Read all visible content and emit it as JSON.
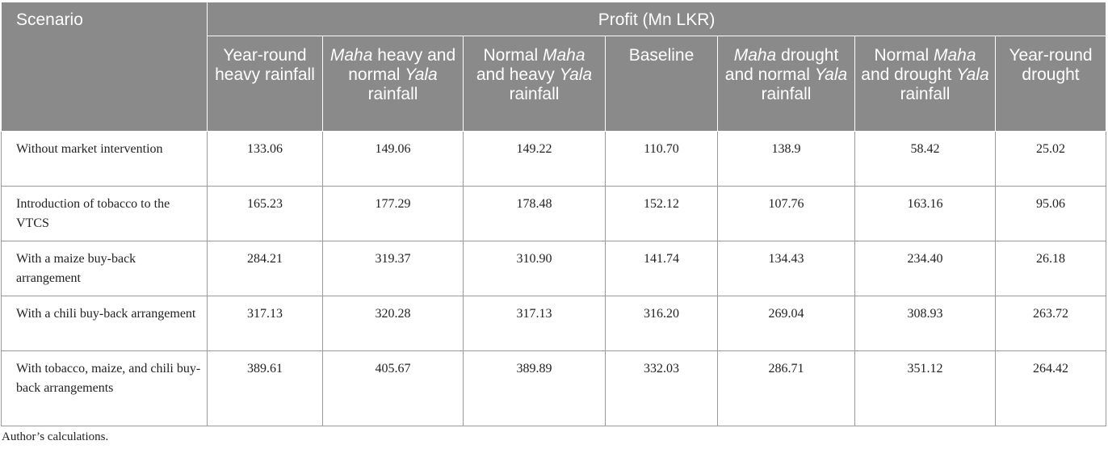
{
  "table": {
    "scenario_header": "Scenario",
    "profit_header": "Profit (Mn LKR)",
    "columns": [
      {
        "pre": "Year-round heavy rainfall",
        "it1": "",
        "mid": "",
        "it2": "",
        "post": ""
      },
      {
        "pre": "",
        "it1": "Maha",
        "mid": " heavy and normal ",
        "it2": "Yala",
        "post": " rainfall"
      },
      {
        "pre": "Normal ",
        "it1": "Maha",
        "mid": " and heavy ",
        "it2": "Yala",
        "post": " rainfall"
      },
      {
        "pre": "Baseline",
        "it1": "",
        "mid": "",
        "it2": "",
        "post": ""
      },
      {
        "pre": "",
        "it1": "Maha",
        "mid": " drought and normal ",
        "it2": "Yala",
        "post": " rainfall"
      },
      {
        "pre": "Normal ",
        "it1": "Maha",
        "mid": " and drought ",
        "it2": "Yala",
        "post": " rainfall"
      },
      {
        "pre": "Year-round drought",
        "it1": "",
        "mid": "",
        "it2": "",
        "post": ""
      }
    ],
    "rows": [
      {
        "label": "Without market intervention",
        "values": [
          "133.06",
          "149.06",
          "149.22",
          "110.70",
          "138.9",
          "58.42",
          "25.02"
        ]
      },
      {
        "label": "Introduction of tobacco to the VTCS",
        "values": [
          "165.23",
          "177.29",
          "178.48",
          "152.12",
          "107.76",
          "163.16",
          "95.06"
        ]
      },
      {
        "label": "With a maize buy-back arrangement",
        "values": [
          "284.21",
          "319.37",
          "310.90",
          "141.74",
          "134.43",
          "234.40",
          "26.18"
        ]
      },
      {
        "label": "With a chili buy-back arrangement",
        "values": [
          "317.13",
          "320.28",
          "317.13",
          "316.20",
          "269.04",
          "308.93",
          "263.72"
        ]
      },
      {
        "label": "With tobacco, maize, and chili buy-back arrangements",
        "values": [
          "389.61",
          "405.67",
          "389.89",
          "332.03",
          "286.71",
          "351.12",
          "264.42"
        ]
      }
    ]
  },
  "footnote": "Author’s calculations."
}
